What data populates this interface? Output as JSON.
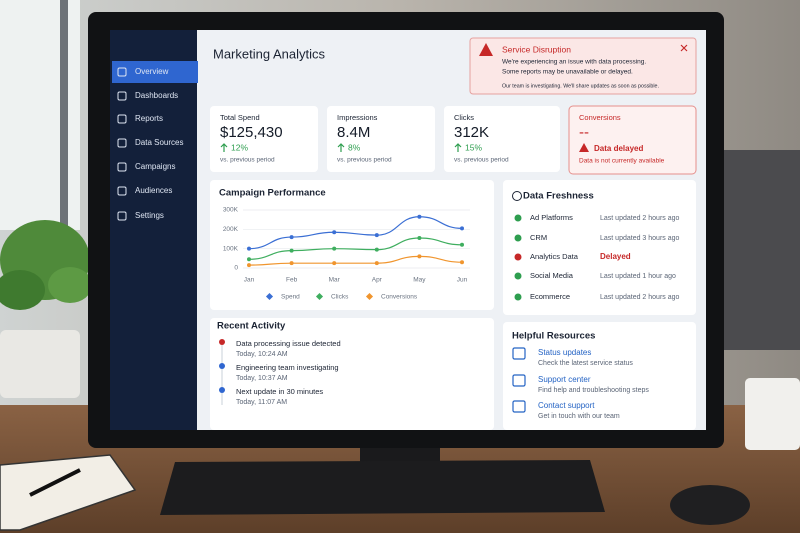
{
  "sidebar": {
    "items": [
      "Overview",
      "Dashboards",
      "Reports",
      "Data Sources",
      "Campaigns",
      "Audiences",
      "Settings"
    ]
  },
  "header": {
    "title": "Marketing Analytics"
  },
  "alert": {
    "title": "Service Disruption",
    "lines": [
      "We're experiencing an issue with data processing.",
      "Some reports may be unavailable or delayed."
    ],
    "note": "Our team is investigating. We'll share updates as soon as possible."
  },
  "kpis": [
    {
      "label": "Total Spend",
      "value": "$125,430",
      "change": "12%",
      "period": "vs. previous period"
    },
    {
      "label": "Impressions",
      "value": "8.4M",
      "change": "8%",
      "period": "vs. previous period"
    },
    {
      "label": "Clicks",
      "value": "312K",
      "change": "15%",
      "period": "vs. previous period"
    },
    {
      "label": "Conversions",
      "value": "--",
      "status": "Data delayed",
      "note": "Data is not currently available"
    }
  ],
  "chart_data": {
    "type": "line",
    "title": "Campaign Performance",
    "categories": [
      "Jan",
      "Feb",
      "Mar",
      "Apr",
      "May",
      "Jun"
    ],
    "series": [
      {
        "name": "Spend",
        "color": "#3b6fd4",
        "values": [
          100000,
          160000,
          185000,
          170000,
          265000,
          205000
        ]
      },
      {
        "name": "Clicks",
        "color": "#3fae5f",
        "values": [
          45000,
          90000,
          100000,
          95000,
          155000,
          120000
        ]
      },
      {
        "name": "Conversions",
        "color": "#f0952e",
        "values": [
          15000,
          25000,
          25000,
          25000,
          60000,
          30000
        ]
      }
    ],
    "ylim": [
      0,
      300000
    ],
    "yticks": [
      {
        "value": 0,
        "label": "0"
      },
      {
        "value": 100000,
        "label": "100K"
      },
      {
        "value": 200000,
        "label": "200K"
      },
      {
        "value": 300000,
        "label": "300K"
      }
    ]
  },
  "freshness": {
    "title": "Data Freshness",
    "rows": [
      {
        "source": "Ad Platforms",
        "status": "Last updated 2 hours ago"
      },
      {
        "source": "CRM",
        "status": "Last updated 3 hours ago"
      },
      {
        "source": "Analytics Data",
        "status": "Delayed"
      },
      {
        "source": "Social Media",
        "status": "Last updated 1 hour ago"
      },
      {
        "source": "Ecommerce",
        "status": "Last updated 2 hours ago"
      }
    ]
  },
  "activity": {
    "title": "Recent Activity",
    "items": [
      {
        "text": "Data processing issue detected",
        "time": "Today, 10:24 AM"
      },
      {
        "text": "Engineering team investigating",
        "time": "Today, 10:37 AM"
      },
      {
        "text": "Next update in 30 minutes",
        "time": "Today, 11:07 AM"
      }
    ]
  },
  "resources": {
    "title": "Helpful Resources",
    "items": [
      {
        "title": "Status updates",
        "desc": "Check the latest service status"
      },
      {
        "title": "Support center",
        "desc": "Find help and troubleshooting steps"
      },
      {
        "title": "Contact support",
        "desc": "Get in touch with our team"
      }
    ]
  }
}
